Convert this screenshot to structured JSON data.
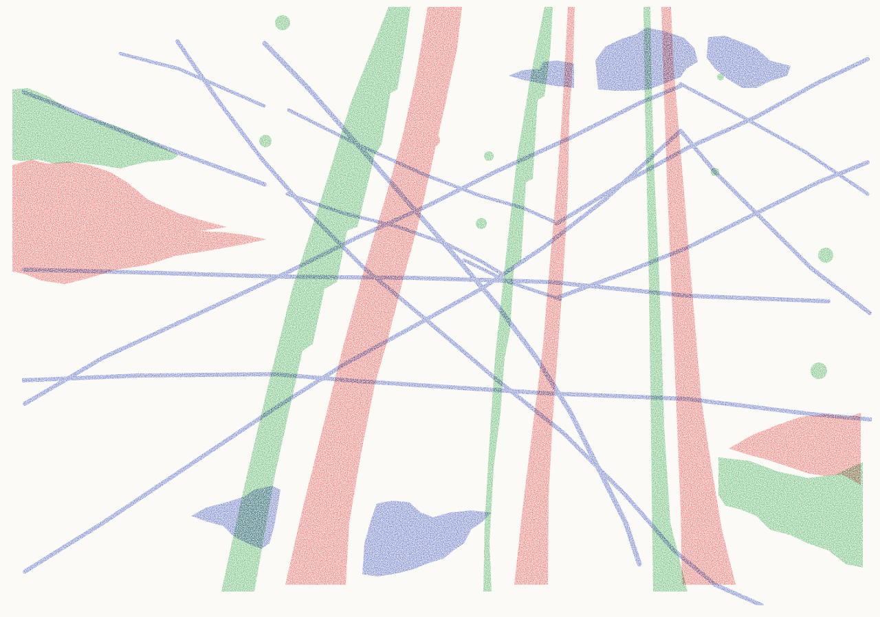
{
  "artwork": {
    "paper_color": "#fbfaf6",
    "inks": {
      "green": "#3cb057",
      "red": "#ec4f4f",
      "blue": "#3f55c9"
    },
    "layers": [
      {
        "name": "green-layer",
        "ink": "green"
      },
      {
        "name": "red-layer",
        "ink": "red"
      },
      {
        "name": "blue-layer",
        "ink": "blue"
      }
    ]
  }
}
